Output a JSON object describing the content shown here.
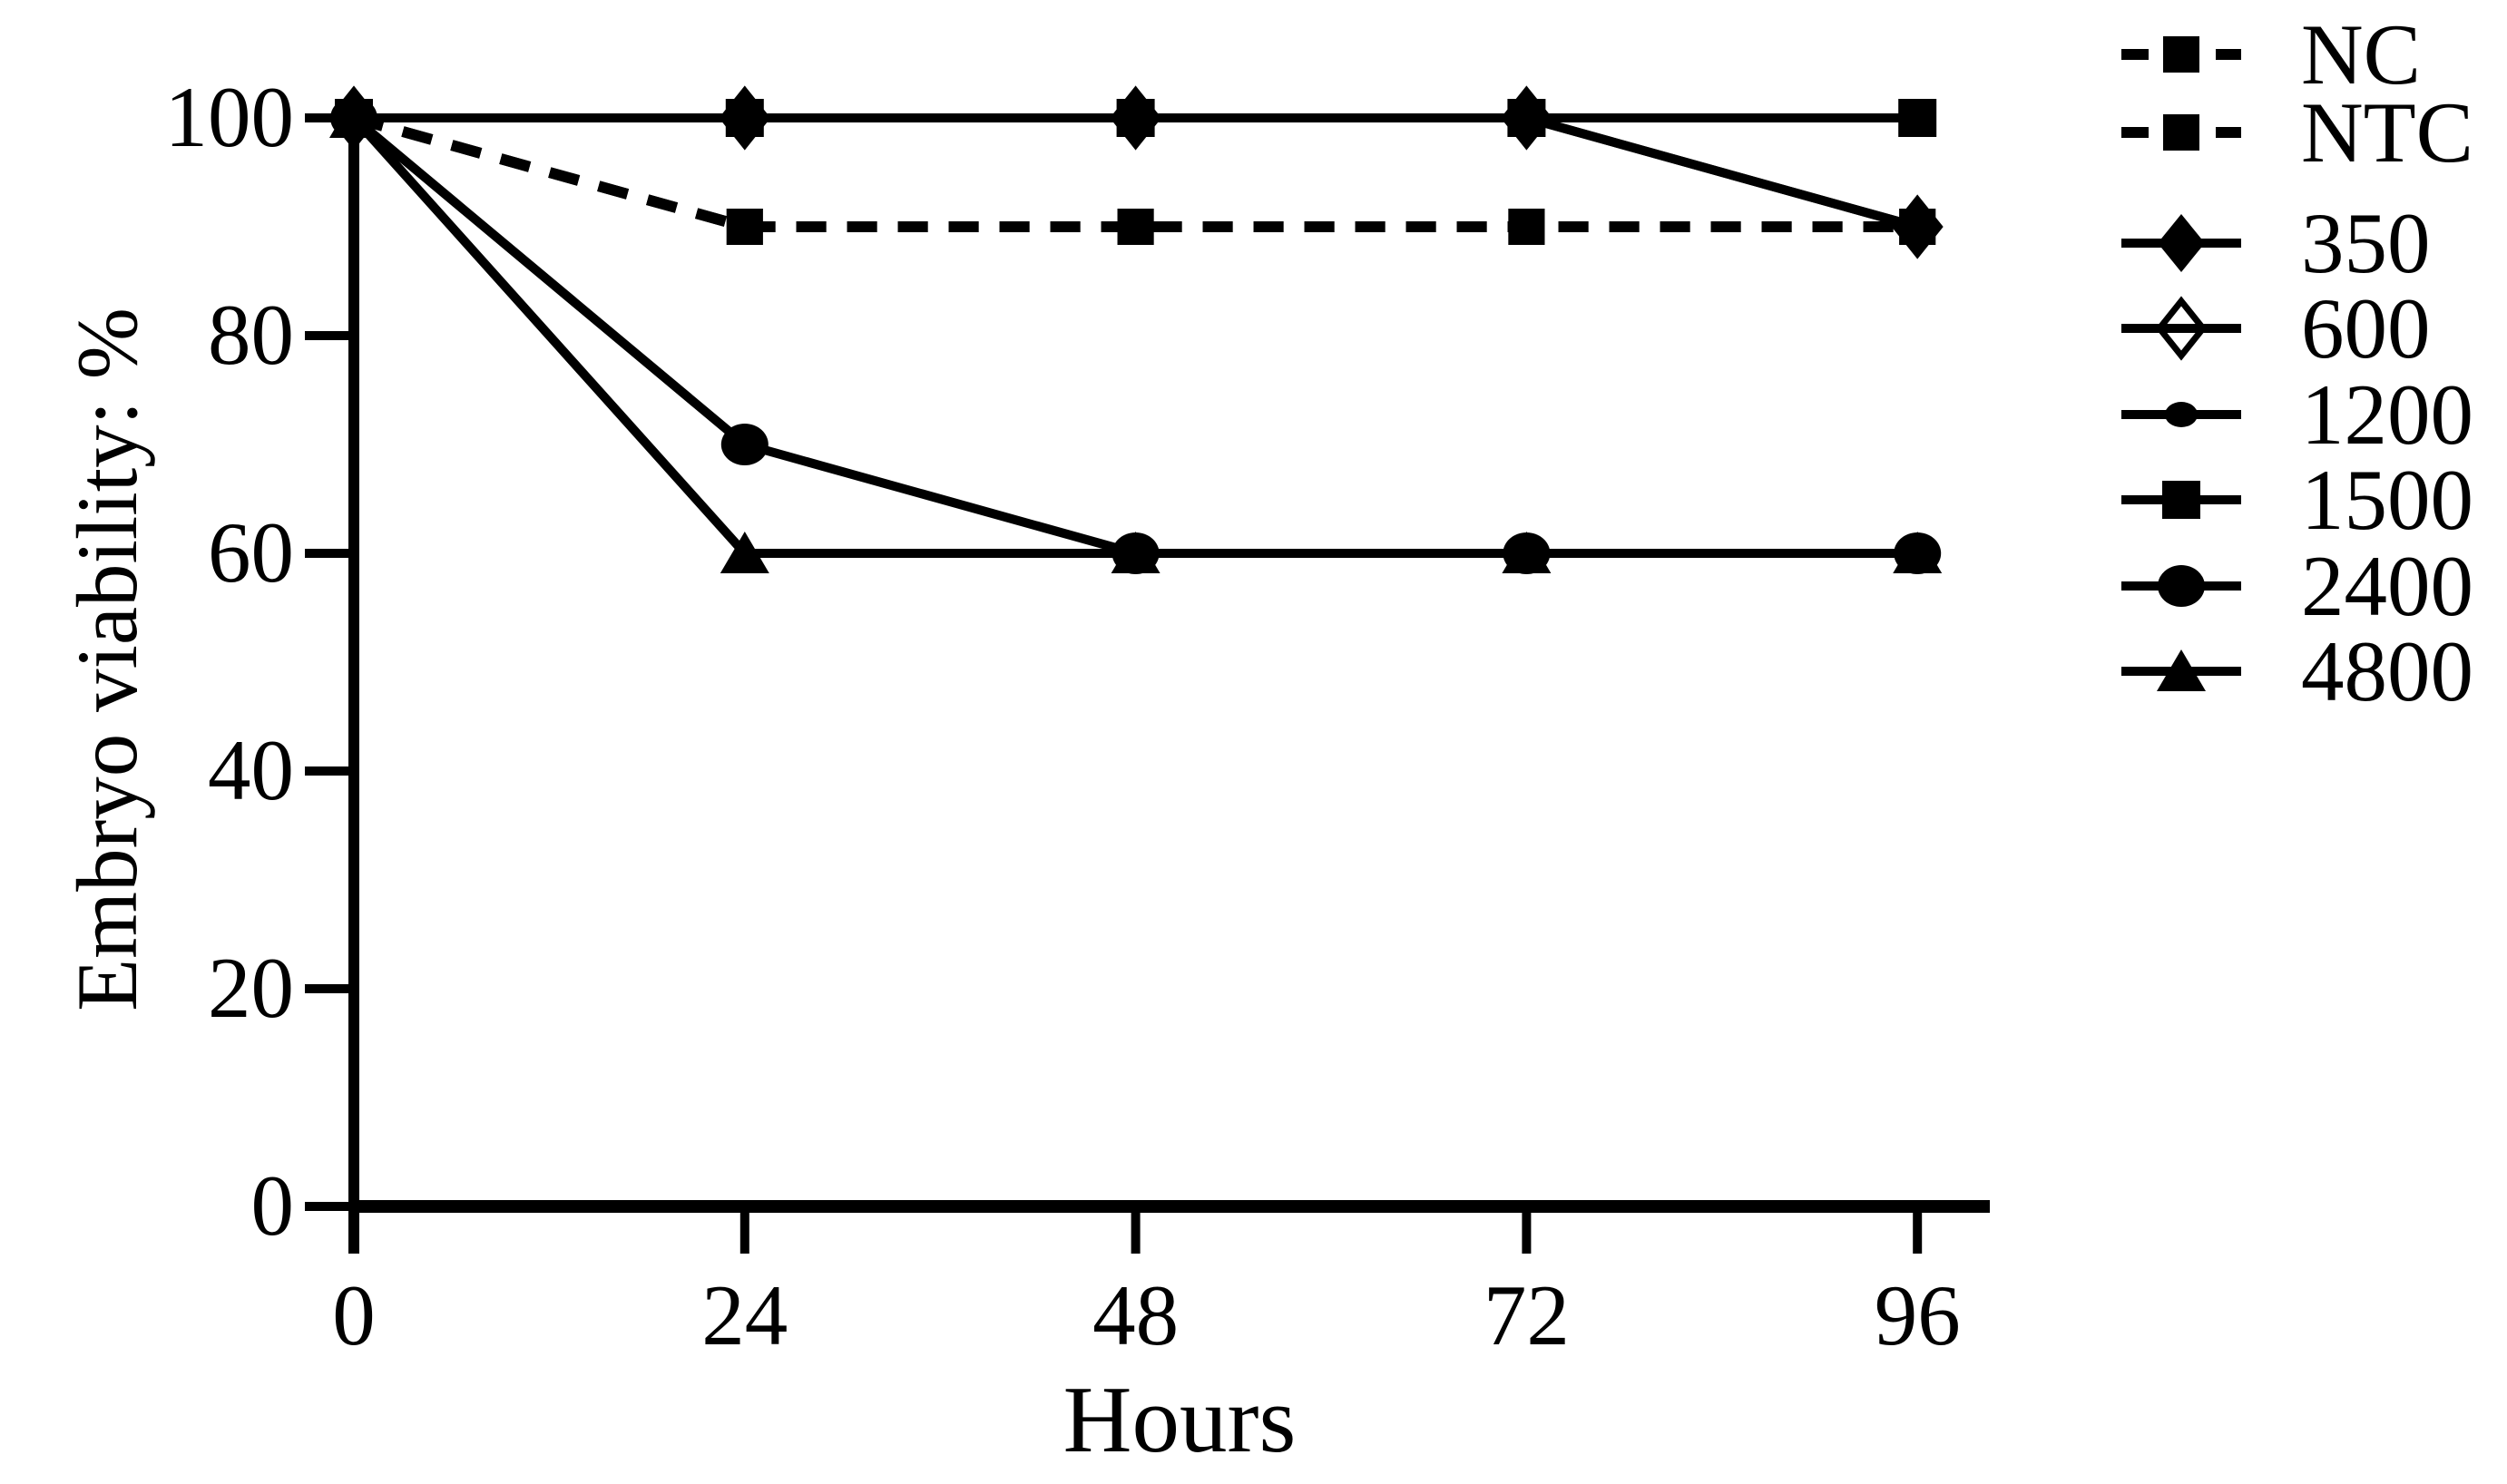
{
  "chart_data": {
    "type": "line",
    "title": "",
    "xlabel": "Hours",
    "ylabel": "Embryo viability: %",
    "x": [
      0,
      24,
      48,
      72,
      96
    ],
    "xticks": [
      0,
      24,
      48,
      72,
      96
    ],
    "yticks": [
      0,
      20,
      40,
      60,
      80,
      100
    ],
    "xlim": [
      0,
      96
    ],
    "ylim": [
      0,
      100
    ],
    "grid": false,
    "legend_position": "right-top",
    "line_color": "#000000",
    "background_color": "#ffffff",
    "series": [
      {
        "name": "NC",
        "values": [
          100,
          90,
          90,
          90,
          90
        ],
        "line": "dashed",
        "marker": "square"
      },
      {
        "name": "NTC",
        "values": [
          100,
          90,
          90,
          90,
          90
        ],
        "line": "dashed",
        "marker": "square"
      },
      {
        "name": "350",
        "values": [
          100,
          100,
          100,
          100,
          90
        ],
        "line": "solid",
        "marker": "diamond"
      },
      {
        "name": "600",
        "values": [
          100,
          100,
          100,
          100,
          90
        ],
        "line": "solid",
        "marker": "diamond-open"
      },
      {
        "name": "1200",
        "values": [
          100,
          100,
          100,
          100,
          100
        ],
        "line": "solid",
        "marker": "oval-small"
      },
      {
        "name": "1500",
        "values": [
          100,
          100,
          100,
          100,
          100
        ],
        "line": "solid",
        "marker": "square-large"
      },
      {
        "name": "2400",
        "values": [
          100,
          70,
          60,
          60,
          60
        ],
        "line": "solid",
        "marker": "ellipse"
      },
      {
        "name": "4800",
        "values": [
          100,
          60,
          60,
          60,
          60
        ],
        "line": "solid",
        "marker": "triangle"
      }
    ]
  }
}
